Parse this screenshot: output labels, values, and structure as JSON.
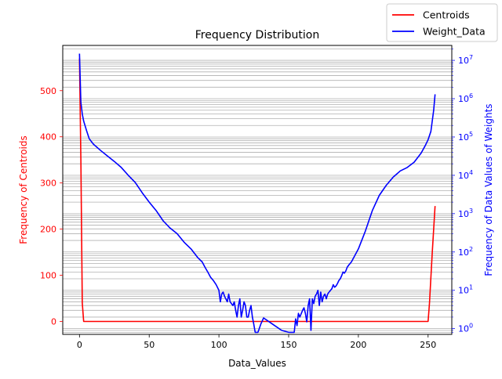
{
  "chart_data": {
    "type": "line",
    "title": "Frequency Distribution",
    "xlabel": "Data_Values",
    "ylabel_left": "Frequency of Centroids",
    "ylabel_right": "Frequency of Data Values of Weights",
    "xlim": [
      -12,
      267
    ],
    "ylim_left": [
      -28,
      598
    ],
    "ylim_right_log10": [
      -0.15,
      7.39
    ],
    "y_right_scale": "log",
    "x_ticks": [
      0,
      50,
      100,
      150,
      200,
      250
    ],
    "x_tick_labels": [
      "0",
      "50",
      "100",
      "150",
      "200",
      "250"
    ],
    "y_left_ticks": [
      0,
      100,
      200,
      300,
      400,
      500
    ],
    "y_left_tick_labels": [
      "0",
      "100",
      "200",
      "300",
      "400",
      "500"
    ],
    "y_right_ticks": [
      1,
      10,
      100,
      1000,
      10000,
      100000,
      1000000,
      10000000
    ],
    "y_right_tick_labels": [
      "10^0",
      "10^1",
      "10^2",
      "10^3",
      "10^4",
      "10^5",
      "10^6",
      "10^7"
    ],
    "grid": "horizontal, right axis major and minor log ticks",
    "legend_position": "top-right",
    "series": [
      {
        "name": "Centroids",
        "axis": "left",
        "color": "#ff0000",
        "x": [
          0,
          1,
          2,
          3,
          250,
          251,
          252,
          253,
          254,
          255
        ],
        "y": [
          570,
          350,
          40,
          0,
          0,
          40,
          95,
          150,
          200,
          250
        ]
      },
      {
        "name": "Weight_Data",
        "axis": "right",
        "color": "#0000ff",
        "x": [
          0,
          1,
          2,
          3,
          5,
          7,
          10,
          15,
          20,
          25,
          30,
          35,
          40,
          45,
          50,
          55,
          60,
          65,
          70,
          75,
          80,
          85,
          88,
          90,
          92,
          94,
          96,
          98,
          100,
          101,
          102,
          103,
          104,
          106,
          107,
          108,
          110,
          111,
          112,
          113,
          114,
          115,
          116,
          117,
          118,
          119,
          120,
          121,
          122,
          123,
          124,
          125,
          126,
          128,
          130,
          132,
          135,
          140,
          145,
          150,
          154,
          155,
          156,
          157,
          158,
          160,
          161,
          162,
          163,
          164,
          165,
          166,
          167,
          168,
          169,
          170,
          171,
          172,
          173,
          174,
          175,
          176,
          177,
          178,
          179,
          180,
          181,
          182,
          183,
          184,
          185,
          186,
          187,
          188,
          189,
          190,
          191,
          192,
          193,
          195,
          200,
          205,
          210,
          215,
          220,
          225,
          230,
          235,
          240,
          245,
          248,
          250,
          252,
          254,
          255
        ],
        "y": [
          15000000,
          800000,
          400000,
          260000,
          150000,
          90000,
          65000,
          45000,
          32000,
          23000,
          16000,
          10000,
          6500,
          3500,
          2000,
          1200,
          650,
          420,
          300,
          180,
          120,
          70,
          55,
          40,
          30,
          22,
          18,
          14,
          10,
          5,
          8,
          9,
          7,
          5,
          8,
          5,
          4,
          5,
          3,
          2,
          4,
          6,
          2,
          3,
          5,
          4,
          2,
          2,
          3,
          4,
          2,
          1.3,
          0.8,
          0.8,
          1.3,
          1.9,
          1.6,
          1.2,
          0.9,
          0.8,
          0.8,
          1.8,
          1.2,
          2.5,
          2,
          3,
          3.5,
          2.5,
          1.5,
          4,
          6,
          0.9,
          6,
          4.5,
          7,
          8,
          10,
          4,
          9,
          5,
          7,
          8,
          6,
          8,
          9,
          10,
          11,
          14,
          12,
          13,
          15,
          18,
          20,
          24,
          30,
          28,
          32,
          40,
          45,
          55,
          120,
          350,
          1200,
          3000,
          5500,
          9000,
          13000,
          16000,
          22000,
          38000,
          60000,
          85000,
          140000,
          500000,
          1300000
        ]
      }
    ]
  }
}
